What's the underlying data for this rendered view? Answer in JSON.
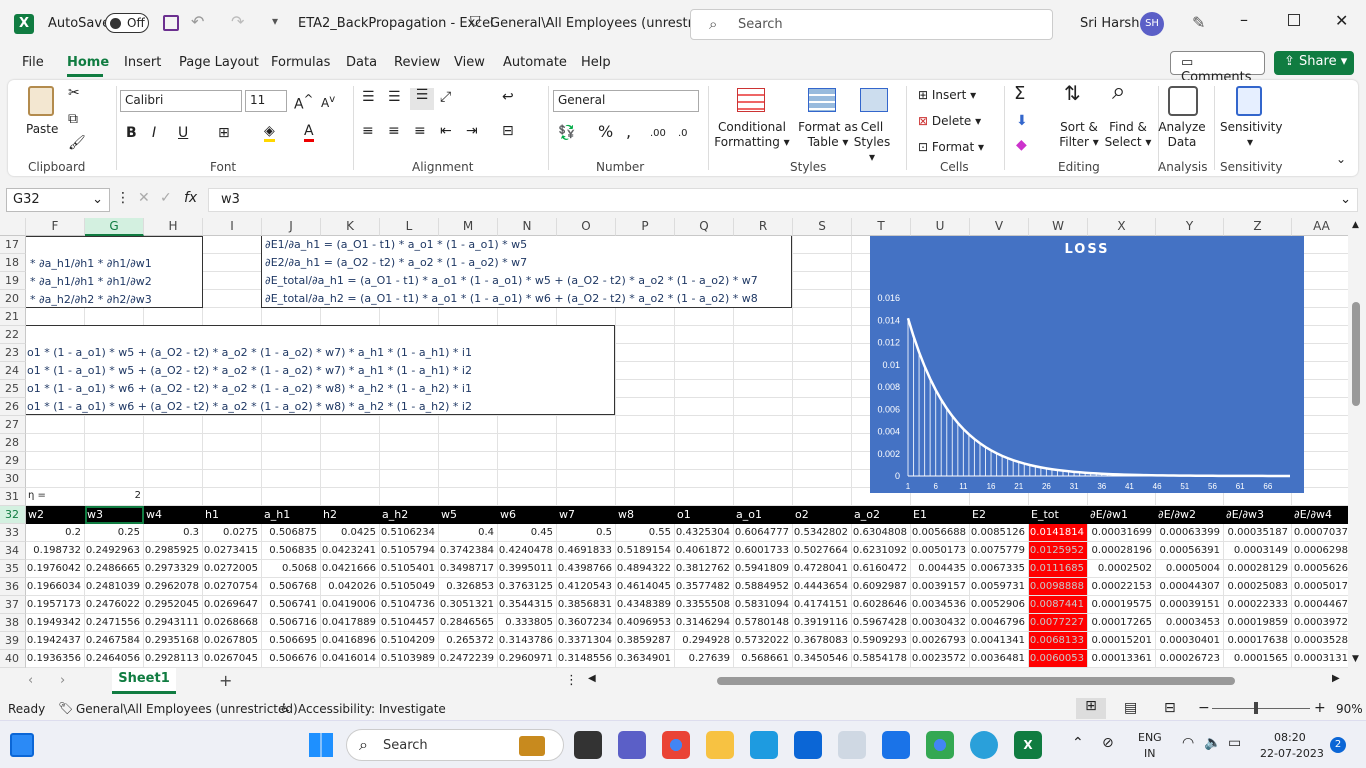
{
  "titlebar": {
    "autosave": "AutoSave",
    "toggle": "Off",
    "filename": "ETA2_BackPropagation",
    "sep": "-",
    "app": "Excel",
    "sensitivity": "General\\All Employees (unrestricted)",
    "search_placeholder": "Search",
    "user": "Sri Harsha",
    "initials": "SH"
  },
  "menu": [
    "File",
    "Home",
    "Insert",
    "Page Layout",
    "Formulas",
    "Data",
    "Review",
    "View",
    "Automate",
    "Help"
  ],
  "menu_right": {
    "comments": "Comments",
    "share": "Share"
  },
  "ribbon": {
    "clipboard": {
      "paste": "Paste",
      "label": "Clipboard"
    },
    "font": {
      "name": "Calibri",
      "size": "11",
      "label": "Font",
      "bold": "B",
      "italic": "I",
      "underline": "U"
    },
    "alignment": {
      "label": "Alignment"
    },
    "number": {
      "format": "General",
      "label": "Number"
    },
    "styles": {
      "cond": "Conditional",
      "cond2": "Formatting",
      "fmt": "Format as",
      "fmt2": "Table",
      "cell": "Cell",
      "cell2": "Styles",
      "label": "Styles"
    },
    "cells": {
      "insert": "Insert",
      "delete": "Delete",
      "format": "Format",
      "label": "Cells"
    },
    "editing": {
      "sort": "Sort &",
      "sort2": "Filter",
      "find": "Find &",
      "find2": "Select",
      "label": "Editing"
    },
    "analysis": {
      "analyze": "Analyze",
      "analyze2": "Data",
      "label": "Analysis"
    },
    "sensitivity": {
      "btn": "Sensitivity",
      "label": "Sensitivity"
    }
  },
  "formula": {
    "namebox": "G32",
    "fx": "fx",
    "content": "w3"
  },
  "columns": [
    {
      "l": "F",
      "w": 59
    },
    {
      "l": "G",
      "w": 59
    },
    {
      "l": "H",
      "w": 59
    },
    {
      "l": "I",
      "w": 59
    },
    {
      "l": "J",
      "w": 59
    },
    {
      "l": "K",
      "w": 59
    },
    {
      "l": "L",
      "w": 59
    },
    {
      "l": "M",
      "w": 59
    },
    {
      "l": "N",
      "w": 59
    },
    {
      "l": "O",
      "w": 59
    },
    {
      "l": "P",
      "w": 59
    },
    {
      "l": "Q",
      "w": 59
    },
    {
      "l": "R",
      "w": 59
    },
    {
      "l": "S",
      "w": 59
    },
    {
      "l": "T",
      "w": 59
    },
    {
      "l": "U",
      "w": 59
    },
    {
      "l": "V",
      "w": 59
    },
    {
      "l": "W",
      "w": 59
    },
    {
      "l": "X",
      "w": 68
    },
    {
      "l": "Y",
      "w": 68
    },
    {
      "l": "Z",
      "w": 68
    },
    {
      "l": "AA",
      "w": 60
    }
  ],
  "rows": [
    "17",
    "18",
    "19",
    "20",
    "21",
    "22",
    "23",
    "24",
    "25",
    "26",
    "27",
    "28",
    "29",
    "30",
    "31",
    "32",
    "33",
    "34",
    "35",
    "36",
    "37",
    "38",
    "39",
    "40"
  ],
  "eq_box1": [
    "* ∂a_h1/∂h1 * ∂h1/∂w1",
    "* ∂a_h1/∂h1 * ∂h1/∂w2",
    "* ∂a_h2/∂h2 * ∂h2/∂w3"
  ],
  "eq_box2": [
    "∂E1/∂a_h1 = (a_O1 - t1) * a_o1 * (1 - a_o1) * w5",
    "∂E2/∂a_h1 = (a_O2 - t2) * a_o2 * (1 - a_o2) * w7",
    "∂E_total/∂a_h1 = (a_O1 - t1) * a_o1 * (1 - a_o1) * w5 + (a_O2 - t2) * a_o2 * (1 - a_o2) * w7",
    "∂E_total/∂a_h2 = (a_O1 - t1) * a_o1 * (1 - a_o1) * w6 + (a_O2 - t2) * a_o2 * (1 - a_o2) * w8"
  ],
  "eq_box3": [
    "o1 * (1 - a_o1) * w5 + (a_O2 - t2) * a_o2 * (1 - a_o2) * w7) * a_h1 * (1 - a_h1) * i1",
    "o1 * (1 - a_o1) * w5 + (a_O2 - t2) * a_o2 * (1 - a_o2) * w7) * a_h1 * (1 - a_h1) * i2",
    "o1 * (1 - a_o1) * w6 + (a_O2 - t2) * a_o2 * (1 - a_o2) * w8) * a_h2 * (1 - a_h2) * i1",
    "o1 * (1 - a_o1) * w6 + (a_O2 - t2) * a_o2 * (1 - a_o2) * w8) * a_h2 * (1 - a_h2) * i2"
  ],
  "eta": {
    "label": "η =",
    "value": "2"
  },
  "table_headers": [
    "w2",
    "w3",
    "w4",
    "h1",
    "a_h1",
    "h2",
    "a_h2",
    "w5",
    "w6",
    "w7",
    "w8",
    "o1",
    "a_o1",
    "o2",
    "a_o2",
    "E1",
    "E2",
    "E_tot",
    "∂E/∂w1",
    "∂E/∂w2",
    "∂E/∂w3",
    "∂E/∂w4"
  ],
  "table_rows": [
    [
      "0.2",
      "0.25",
      "0.3",
      "0.0275",
      "0.506875",
      "0.0425",
      "0.5106234",
      "0.4",
      "0.45",
      "0.5",
      "0.55",
      "0.4325304",
      "0.6064777",
      "0.5342802",
      "0.6304808",
      "0.0056688",
      "0.0085126",
      "0.0141814",
      "0.00031699",
      "0.00063399",
      "0.00035187",
      "0.0007037"
    ],
    [
      "0.198732",
      "0.2492963",
      "0.2985925",
      "0.0273415",
      "0.506835",
      "0.0423241",
      "0.5105794",
      "0.3742384",
      "0.4240478",
      "0.4691833",
      "0.5189154",
      "0.4061872",
      "0.6001733",
      "0.5027664",
      "0.6231092",
      "0.0050173",
      "0.0075779",
      "0.0125952",
      "0.00028196",
      "0.00056391",
      "0.0003149",
      "0.0006298"
    ],
    [
      "0.1976042",
      "0.2486665",
      "0.2973329",
      "0.0272005",
      "0.5068",
      "0.0421666",
      "0.5105401",
      "0.3498717",
      "0.3995011",
      "0.4398766",
      "0.4894322",
      "0.3812762",
      "0.5941809",
      "0.4728041",
      "0.6160472",
      "0.004435",
      "0.0067335",
      "0.0111685",
      "0.0002502",
      "0.0005004",
      "0.00028129",
      "0.0005626"
    ],
    [
      "0.1966034",
      "0.2481039",
      "0.2962078",
      "0.0270754",
      "0.506768",
      "0.042026",
      "0.5105049",
      "0.326853",
      "0.3763125",
      "0.4120543",
      "0.4614045",
      "0.3577482",
      "0.5884952",
      "0.4443654",
      "0.6092987",
      "0.0039157",
      "0.0059731",
      "0.0098888",
      "0.00022153",
      "0.00044307",
      "0.00025083",
      "0.0005017"
    ],
    [
      "0.1957173",
      "0.2476022",
      "0.2952045",
      "0.0269647",
      "0.506741",
      "0.0419006",
      "0.5104736",
      "0.3051321",
      "0.3544315",
      "0.3856831",
      "0.4348389",
      "0.3355508",
      "0.5831094",
      "0.4174151",
      "0.6028646",
      "0.0034536",
      "0.0052906",
      "0.0087441",
      "0.00019575",
      "0.00039151",
      "0.00022333",
      "0.0004467"
    ],
    [
      "0.1949342",
      "0.2471556",
      "0.2943111",
      "0.0268668",
      "0.506716",
      "0.0417889",
      "0.5104457",
      "0.2846565",
      "0.333805",
      "0.3607234",
      "0.4096953",
      "0.3146294",
      "0.5780148",
      "0.3919116",
      "0.5967428",
      "0.0030432",
      "0.0046796",
      "0.0077227",
      "0.00017265",
      "0.0003453",
      "0.00019859",
      "0.0003972"
    ],
    [
      "0.1942437",
      "0.2467584",
      "0.2935168",
      "0.0267805",
      "0.506695",
      "0.0416896",
      "0.5104209",
      "0.265372",
      "0.3143786",
      "0.3371304",
      "0.3859287",
      "0.294928",
      "0.5732022",
      "0.3678083",
      "0.5909293",
      "0.0026793",
      "0.0041341",
      "0.0068133",
      "0.00015201",
      "0.00030401",
      "0.00017638",
      "0.0003528"
    ],
    [
      "0.1936356",
      "0.2464056",
      "0.2928113",
      "0.0267045",
      "0.506676",
      "0.0416014",
      "0.5103989",
      "0.2472239",
      "0.2960971",
      "0.3148556",
      "0.3634901",
      "0.27639",
      "0.568661",
      "0.3450546",
      "0.5854178",
      "0.0023572",
      "0.0036481",
      "0.0060053",
      "0.00013361",
      "0.00026723",
      "0.0001565",
      "0.0003131"
    ]
  ],
  "chart_data": {
    "type": "area",
    "title": "LOSS",
    "ylim": [
      0,
      0.016
    ],
    "yticks": [
      "0",
      "0.002",
      "0.004",
      "0.006",
      "0.008",
      "0.01",
      "0.012",
      "0.014",
      "0.016"
    ],
    "xticks": [
      "1",
      "6",
      "11",
      "16",
      "21",
      "26",
      "31",
      "36",
      "41",
      "46",
      "51",
      "56",
      "61",
      "66"
    ],
    "x_start": 1,
    "x_end": 70,
    "series": [
      {
        "name": "E_tot",
        "start": 0.0141814,
        "decay": 0.886
      }
    ]
  },
  "sheet": {
    "tab": "Sheet1",
    "add": "+"
  },
  "status": {
    "ready": "Ready",
    "sensitivity": "General\\All Employees (unrestricted)",
    "accessibility": "Accessibility: Investigate",
    "zoom": "90%"
  },
  "taskbar": {
    "search": "Search",
    "lang1": "ENG",
    "lang2": "IN",
    "time": "08:20",
    "date": "22-07-2023",
    "notif": "2"
  },
  "colors": {
    "excel_green": "#107c41",
    "chart_bg": "#4472c4",
    "selected": "#ff0000",
    "header_black": "#000000"
  }
}
